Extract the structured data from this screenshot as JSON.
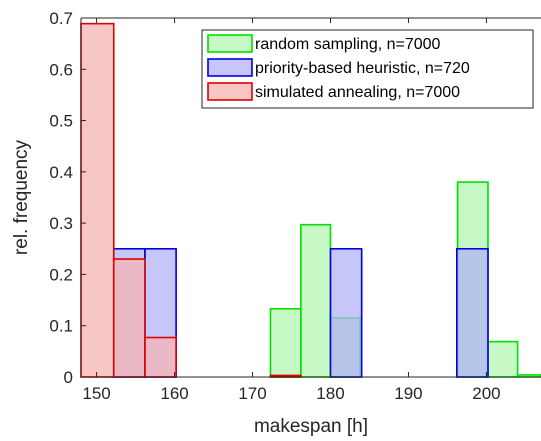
{
  "chart_data": {
    "type": "bar",
    "xlabel": "makespan [h]",
    "ylabel": "rel. frequency",
    "xlim": [
      148,
      207
    ],
    "ylim": [
      0,
      0.7
    ],
    "xticks": [
      "150",
      "160",
      "170",
      "180",
      "190",
      "200"
    ],
    "yticks": [
      "0",
      "0.1",
      "0.2",
      "0.3",
      "0.4",
      "0.5",
      "0.6",
      "0.7"
    ],
    "legend_position": "top-right",
    "series": [
      {
        "name": "random sampling, n=7000",
        "fill": "#b3f7b3",
        "edge": "#00e000",
        "bins": [
          {
            "x0": 172.3,
            "x1": 176.2,
            "value": 0.133
          },
          {
            "x0": 176.2,
            "x1": 180.0,
            "value": 0.297
          },
          {
            "x0": 180.0,
            "x1": 183.8,
            "value": 0.115
          },
          {
            "x0": 196.3,
            "x1": 200.2,
            "value": 0.38
          },
          {
            "x0": 200.2,
            "x1": 204.0,
            "value": 0.069
          },
          {
            "x0": 204.0,
            "x1": 207.8,
            "value": 0.004
          }
        ]
      },
      {
        "name": "priority-based heuristic, n=720",
        "fill": "#b3b3f7",
        "edge": "#0000e0",
        "bins": [
          {
            "x0": 152.2,
            "x1": 156.2,
            "value": 0.25
          },
          {
            "x0": 156.2,
            "x1": 160.2,
            "value": 0.25
          },
          {
            "x0": 180.0,
            "x1": 184.0,
            "value": 0.25
          },
          {
            "x0": 196.2,
            "x1": 200.2,
            "value": 0.25
          }
        ]
      },
      {
        "name": "simulated annealing, n=7000",
        "fill": "#f7b3b3",
        "edge": "#e00000",
        "bins": [
          {
            "x0": 148.0,
            "x1": 152.2,
            "value": 0.689
          },
          {
            "x0": 152.2,
            "x1": 156.2,
            "value": 0.23
          },
          {
            "x0": 156.2,
            "x1": 160.2,
            "value": 0.077
          },
          {
            "x0": 172.3,
            "x1": 176.2,
            "value": 0.003
          }
        ]
      }
    ]
  }
}
